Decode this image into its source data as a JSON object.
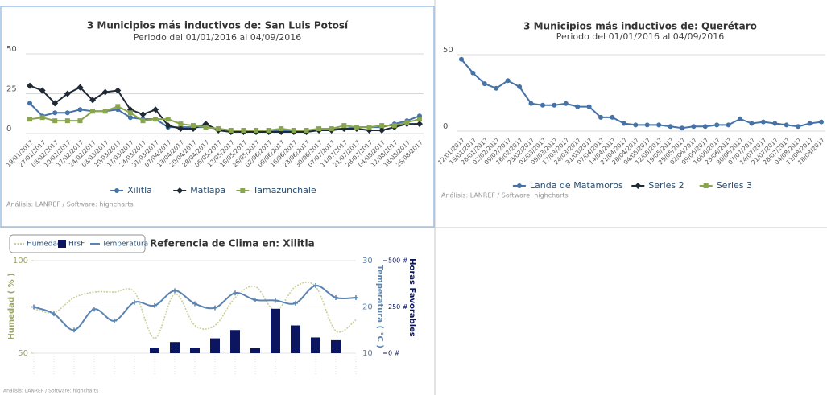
{
  "chart_data": [
    {
      "type": "line",
      "title": "3 Municipios más inductivos de: San Luis Potosí",
      "subtitle": "Periodo del 01/01/2016 al 04/09/2016",
      "credits": "Análisis: LANREF / Software: highcharts",
      "categories": [
        "19/01/2017",
        "27/01/2017",
        "03/02/2017",
        "10/02/2017",
        "17/02/2017",
        "24/02/2017",
        "03/03/2017",
        "10/03/2017",
        "17/03/2017",
        "24/03/2017",
        "31/03/2017",
        "07/04/2017",
        "13/04/2017",
        "20/04/2017",
        "28/04/2017",
        "05/05/2017",
        "12/05/2017",
        "18/05/2017",
        "26/05/2017",
        "02/06/2017",
        "09/06/2017",
        "16/06/2017",
        "23/06/2017",
        "30/06/2017",
        "07/07/2017",
        "14/07/2017",
        "21/07/2017",
        "28/07/2017",
        "04/08/2017",
        "12/08/2017",
        "18/08/2017",
        "25/08/2017"
      ],
      "series": [
        {
          "name": "Xilitla",
          "color": "#4572a7",
          "marker": "circle",
          "values": [
            19,
            11,
            13,
            13,
            15,
            14,
            14,
            15,
            10,
            9,
            9,
            4,
            4,
            4,
            4,
            3,
            2,
            2,
            2,
            2,
            2,
            2,
            2,
            2,
            3,
            3,
            4,
            4,
            4,
            6,
            8,
            11
          ]
        },
        {
          "name": "Matlapa",
          "color": "#1f2a36",
          "marker": "diamond",
          "values": [
            30,
            27,
            19,
            25,
            29,
            21,
            26,
            27,
            15,
            12,
            15,
            5,
            3,
            3,
            6,
            2,
            1,
            1,
            1,
            1,
            1,
            1,
            1,
            2,
            2,
            3,
            3,
            2,
            2,
            4,
            6,
            6
          ]
        },
        {
          "name": "Tamazunchale",
          "color": "#89a54e",
          "marker": "square",
          "values": [
            9,
            10,
            8,
            8,
            8,
            14,
            14,
            17,
            13,
            8,
            9,
            9,
            6,
            5,
            4,
            3,
            2,
            2,
            2,
            2,
            3,
            2,
            2,
            3,
            3,
            5,
            4,
            4,
            5,
            5,
            7,
            9
          ]
        }
      ],
      "ylim": [
        0,
        50
      ],
      "yticks": [
        0,
        25,
        50
      ],
      "grid": true
    },
    {
      "type": "line",
      "title": "3 Municipios más inductivos de: Querétaro",
      "subtitle": "Periodo del 01/01/2016 al 04/09/2016",
      "credits": "Análisis: LANREF / Software: highcharts",
      "categories": [
        "12/01/2017",
        "19/01/2017",
        "26/01/2017",
        "02/02/2017",
        "09/02/2017",
        "16/02/2017",
        "23/02/2017",
        "02/03/2017",
        "09/03/2017",
        "17/03/2017",
        "24/03/2017",
        "31/03/2017",
        "07/04/2017",
        "14/04/2017",
        "21/04/2017",
        "28/04/2017",
        "04/05/2017",
        "12/05/2017",
        "19/05/2017",
        "25/05/2017",
        "02/06/2017",
        "09/06/2017",
        "16/06/2017",
        "23/06/2017",
        "30/06/2017",
        "07/07/2017",
        "14/07/2017",
        "21/07/2017",
        "28/07/2017",
        "04/08/2017",
        "11/08/2017",
        "18/08/2017"
      ],
      "series": [
        {
          "name": "Landa de Matamoros",
          "color": "#4572a7",
          "marker": "circle",
          "values": [
            47,
            38,
            31,
            28,
            33,
            29,
            18,
            17,
            17,
            18,
            16,
            16,
            9,
            9,
            5,
            4,
            4,
            4,
            3,
            2,
            3,
            3,
            4,
            4,
            8,
            5,
            6,
            5,
            4,
            3,
            5,
            6
          ]
        },
        {
          "name": "Series 2",
          "color": "#1f2a36",
          "marker": "diamond",
          "values": [
            null,
            null,
            null,
            null,
            null,
            null,
            null,
            null,
            null,
            null,
            null,
            null,
            null,
            null,
            null,
            null,
            null,
            null,
            null,
            null,
            null,
            null,
            null,
            null,
            null,
            null,
            null,
            null,
            null,
            null,
            null,
            null
          ]
        },
        {
          "name": "Series 3",
          "color": "#89a54e",
          "marker": "square",
          "values": [
            null,
            null,
            null,
            null,
            null,
            null,
            null,
            null,
            null,
            null,
            null,
            null,
            null,
            null,
            null,
            null,
            null,
            null,
            null,
            null,
            null,
            null,
            null,
            null,
            null,
            null,
            null,
            null,
            null,
            null,
            null,
            null
          ]
        }
      ],
      "ylim": [
        0,
        50
      ],
      "yticks": [
        0,
        50
      ],
      "grid": true
    },
    {
      "type": "combo",
      "title": "Referencia de Clima en: Xilitla",
      "credits": "Análisis: LANREF / Software: highcharts",
      "categories": [
        null,
        null,
        null,
        null,
        null,
        null,
        null,
        null,
        null,
        null,
        null,
        null,
        null,
        null,
        null,
        null,
        null
      ],
      "series": [
        {
          "name": "Humedad",
          "color": "#c9cf9a",
          "kind": "line",
          "axis": "y",
          "values": [
            74,
            72,
            80,
            83,
            83,
            83,
            58,
            82,
            65,
            65,
            80,
            86,
            73,
            86,
            86,
            62,
            68
          ]
        },
        {
          "name": "HrsF",
          "color": "#0c1660",
          "kind": "bar",
          "axis": "y3",
          "values": [
            null,
            null,
            null,
            null,
            null,
            null,
            30,
            60,
            30,
            80,
            125,
            27,
            240,
            150,
            85,
            70,
            null
          ]
        },
        {
          "name": "Temperatura",
          "color": "#5b84b1",
          "kind": "line",
          "axis": "y2",
          "values": [
            20,
            18.5,
            15,
            19.5,
            17,
            21,
            20.3,
            23.5,
            20.7,
            19.8,
            23,
            21.5,
            21.4,
            20.8,
            24.6,
            22,
            22
          ]
        }
      ],
      "ylabel": "Humedad ( % )",
      "ylim": [
        50,
        100
      ],
      "yticks": [
        50,
        100
      ],
      "y2label": "Temperatura ( °C )",
      "y2lim": [
        10,
        30
      ],
      "y2ticks": [
        10,
        20,
        30
      ],
      "y3label": "Horas Favorables",
      "y3lim": [
        0,
        500
      ],
      "y3ticks": [
        {
          "value": 0,
          "label": "0 #"
        },
        {
          "value": 250,
          "label": "250 #"
        },
        {
          "value": 500,
          "label": "500 #"
        }
      ]
    }
  ]
}
